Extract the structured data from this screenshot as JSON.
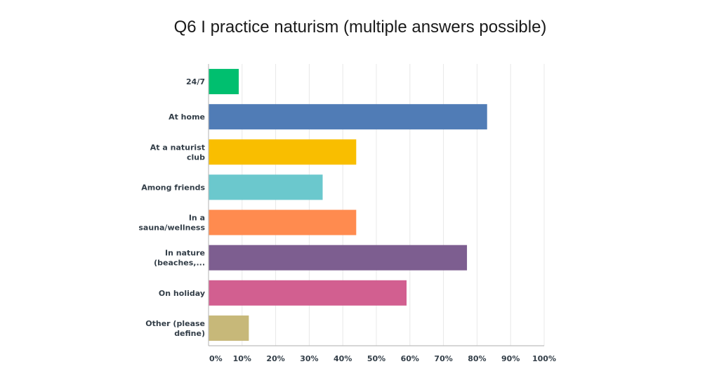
{
  "chart_data": {
    "type": "bar",
    "orientation": "horizontal",
    "title": "Q6 I practice naturism (multiple answers possible)",
    "xlabel": "",
    "ylabel": "",
    "xlim": [
      0,
      100
    ],
    "grid": true,
    "categories": [
      [
        "24/7"
      ],
      [
        "At home"
      ],
      [
        "At a naturist",
        "club"
      ],
      [
        "Among friends"
      ],
      [
        "In a",
        "sauna/wellness"
      ],
      [
        "In nature",
        "(beaches,..."
      ],
      [
        "On holiday"
      ],
      [
        "Other (please",
        "define)"
      ]
    ],
    "values": [
      9,
      83,
      44,
      34,
      44,
      77,
      59,
      12
    ],
    "colors": [
      "#00bf6f",
      "#507cb6",
      "#f9be00",
      "#6bc8cd",
      "#ff8b4f",
      "#7d5e90",
      "#d25f90",
      "#c7b879"
    ],
    "ticks": [
      0,
      10,
      20,
      30,
      40,
      50,
      60,
      70,
      80,
      90,
      100
    ],
    "tick_labels": [
      "0%",
      "10%",
      "20%",
      "30%",
      "40%",
      "50%",
      "60%",
      "70%",
      "80%",
      "90%",
      "100%"
    ]
  }
}
